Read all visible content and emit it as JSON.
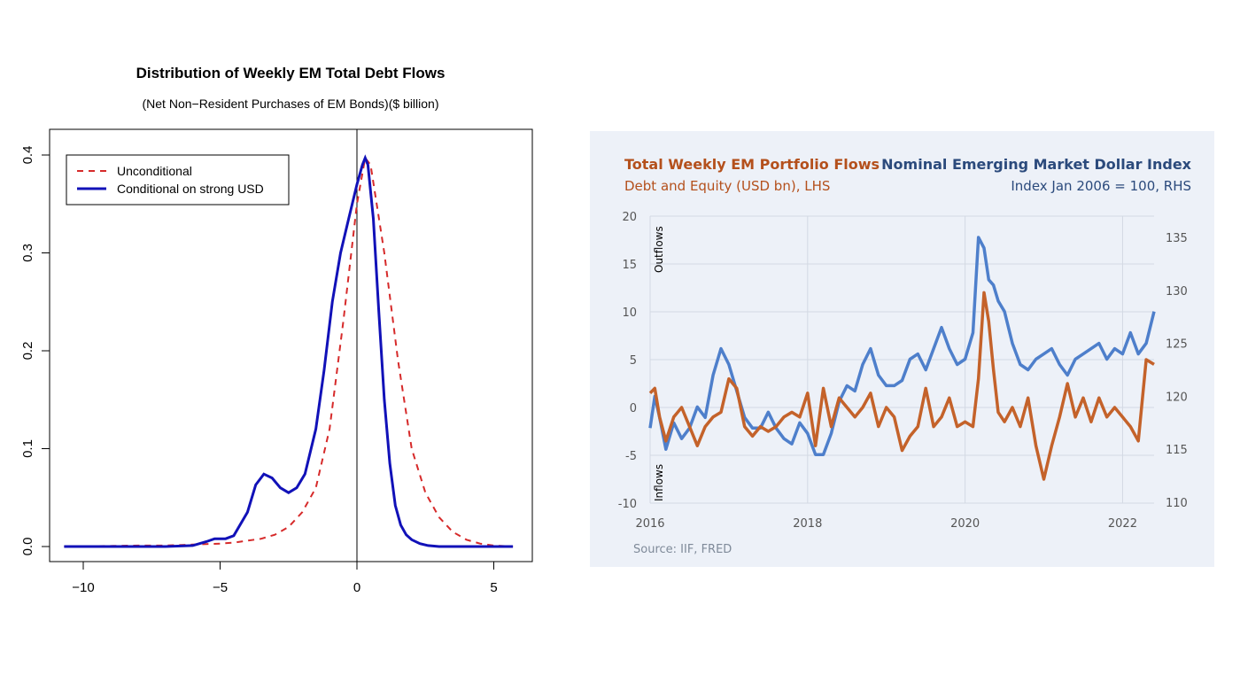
{
  "colors": {
    "unconditional": "#d62a2a",
    "conditional": "#1111b8",
    "debt_equity": "#c4622a",
    "dollar_index": "#4e7fcb",
    "panel_bg": "#edf1f8",
    "right_title_blue": "#2b4a7c",
    "right_title_orange": "#b4501c"
  },
  "chart_data": [
    {
      "type": "line",
      "title": "Distribution of Weekly EM Total Debt Flows",
      "subtitle": "(Net Non−Resident Purchases of EM Bonds)($ billion)",
      "xlabel": "",
      "ylabel": "",
      "xlim": [
        -10.7,
        5.8
      ],
      "ylim": [
        0,
        0.4
      ],
      "xticks": [
        "−10",
        "−5",
        "0",
        "5"
      ],
      "xtick_values": [
        -10,
        -5,
        0,
        5
      ],
      "yticks": [
        "0.0",
        "0.1",
        "0.2",
        "0.3",
        "0.4"
      ],
      "ytick_values": [
        0,
        0.1,
        0.2,
        0.3,
        0.4
      ],
      "vline": 0,
      "grid": false,
      "legend_position": "top-left",
      "series": [
        {
          "name": "Unconditional",
          "style": "dashed",
          "x": [
            -10.7,
            -8,
            -7,
            -6,
            -5,
            -4.5,
            -4,
            -3.5,
            -3,
            -2.5,
            -2,
            -1.5,
            -1,
            -0.5,
            0,
            0.3,
            0.5,
            1,
            1.5,
            2,
            2.5,
            3,
            3.5,
            4,
            4.5,
            5,
            5.7
          ],
          "y": [
            0,
            0.001,
            0.001,
            0.002,
            0.003,
            0.004,
            0.006,
            0.008,
            0.012,
            0.02,
            0.035,
            0.06,
            0.12,
            0.23,
            0.35,
            0.397,
            0.39,
            0.3,
            0.19,
            0.1,
            0.055,
            0.03,
            0.015,
            0.007,
            0.003,
            0.001,
            0
          ]
        },
        {
          "name": "Conditional on strong USD",
          "style": "solid",
          "x": [
            -10.7,
            -7,
            -6,
            -5.5,
            -5.2,
            -4.8,
            -4.5,
            -4,
            -3.7,
            -3.4,
            -3.1,
            -2.8,
            -2.5,
            -2.2,
            -1.9,
            -1.5,
            -1.2,
            -0.9,
            -0.6,
            -0.3,
            0,
            0.2,
            0.3,
            0.4,
            0.6,
            0.8,
            1,
            1.2,
            1.4,
            1.6,
            1.8,
            2,
            2.3,
            2.6,
            3,
            3.5,
            5.7
          ],
          "y": [
            0,
            0,
            0.001,
            0.005,
            0.008,
            0.008,
            0.011,
            0.035,
            0.063,
            0.074,
            0.07,
            0.06,
            0.055,
            0.06,
            0.074,
            0.12,
            0.18,
            0.25,
            0.3,
            0.335,
            0.37,
            0.39,
            0.397,
            0.39,
            0.335,
            0.24,
            0.15,
            0.085,
            0.042,
            0.022,
            0.012,
            0.007,
            0.003,
            0.001,
            0,
            0,
            0
          ]
        }
      ]
    },
    {
      "type": "line",
      "title": "Total Weekly EM Portfolio Flows",
      "subtitle": "Debt and Equity (USD bn), LHS",
      "title_right": "Nominal Emerging Market Dollar Index",
      "subtitle_right": "Index Jan 2006 = 100, RHS",
      "source": "Source: IIF, FRED",
      "annotations": [
        "Outflows",
        "Inflows"
      ],
      "xlim": [
        2016,
        2022.4
      ],
      "ylim": [
        -10,
        20
      ],
      "y2lim": [
        110,
        136
      ],
      "xticks": [
        "2016",
        "2018",
        "2020",
        "2022"
      ],
      "xtick_values": [
        2016,
        2018,
        2020,
        2022
      ],
      "yticks": [
        "20",
        "15",
        "10",
        "5",
        "0",
        "-5",
        "-10"
      ],
      "ytick_values": [
        20,
        15,
        10,
        5,
        0,
        -5,
        -10
      ],
      "y2ticks": [
        "135",
        "130",
        "125",
        "120",
        "115",
        "110"
      ],
      "y2tick_values": [
        135,
        130,
        125,
        120,
        115,
        110
      ],
      "grid": true,
      "series": [
        {
          "name": "Total Weekly EM Portfolio Flows",
          "axis": "left",
          "x": [
            2016.0,
            2016.06,
            2016.12,
            2016.2,
            2016.3,
            2016.4,
            2016.5,
            2016.6,
            2016.7,
            2016.8,
            2016.9,
            2017.0,
            2017.1,
            2017.2,
            2017.3,
            2017.4,
            2017.5,
            2017.6,
            2017.7,
            2017.8,
            2017.9,
            2018.0,
            2018.1,
            2018.2,
            2018.3,
            2018.4,
            2018.5,
            2018.6,
            2018.7,
            2018.8,
            2018.9,
            2019.0,
            2019.1,
            2019.2,
            2019.3,
            2019.4,
            2019.5,
            2019.6,
            2019.7,
            2019.8,
            2019.9,
            2020.0,
            2020.1,
            2020.17,
            2020.24,
            2020.3,
            2020.36,
            2020.42,
            2020.5,
            2020.6,
            2020.7,
            2020.8,
            2020.9,
            2021.0,
            2021.1,
            2021.2,
            2021.3,
            2021.4,
            2021.5,
            2021.6,
            2021.7,
            2021.8,
            2021.9,
            2022.0,
            2022.1,
            2022.2,
            2022.3,
            2022.4
          ],
          "y": [
            1.5,
            2,
            -1,
            -3.5,
            -1,
            0,
            -2,
            -4,
            -2,
            -1,
            -0.5,
            3,
            2,
            -2,
            -3,
            -2,
            -2.5,
            -2,
            -1,
            -0.5,
            -1,
            1.5,
            -4,
            2,
            -2,
            1,
            0,
            -1,
            0,
            1.5,
            -2,
            0,
            -1,
            -4.5,
            -3,
            -2,
            2,
            -2,
            -1,
            1,
            -2,
            -1.5,
            -2,
            3,
            12,
            9,
            4,
            -0.5,
            -1.5,
            0,
            -2,
            1,
            -4,
            -7.5,
            -4,
            -1,
            2.5,
            -1,
            1,
            -1.5,
            1,
            -1,
            0,
            -1,
            -2,
            -3.5,
            5,
            4.5
          ]
        },
        {
          "name": "Nominal Emerging Market Dollar Index",
          "axis": "right",
          "x": [
            2016.0,
            2016.06,
            2016.12,
            2016.2,
            2016.3,
            2016.4,
            2016.5,
            2016.6,
            2016.7,
            2016.8,
            2016.9,
            2017.0,
            2017.1,
            2017.2,
            2017.3,
            2017.4,
            2017.5,
            2017.6,
            2017.7,
            2017.8,
            2017.9,
            2018.0,
            2018.1,
            2018.2,
            2018.3,
            2018.4,
            2018.5,
            2018.6,
            2018.7,
            2018.8,
            2018.9,
            2019.0,
            2019.1,
            2019.2,
            2019.3,
            2019.4,
            2019.5,
            2019.6,
            2019.7,
            2019.8,
            2019.9,
            2020.0,
            2020.1,
            2020.17,
            2020.24,
            2020.3,
            2020.36,
            2020.42,
            2020.5,
            2020.6,
            2020.7,
            2020.8,
            2020.9,
            2021.0,
            2021.1,
            2021.2,
            2021.3,
            2021.4,
            2021.5,
            2021.6,
            2021.7,
            2021.8,
            2021.9,
            2022.0,
            2022.1,
            2022.2,
            2022.3,
            2022.4
          ],
          "y": [
            117,
            120,
            118,
            115,
            117.5,
            116,
            117,
            119,
            118,
            122,
            124.5,
            123,
            120.5,
            118,
            117,
            117,
            118.5,
            117,
            116,
            115.5,
            117.5,
            116.5,
            114.5,
            114.5,
            116.5,
            119.5,
            121,
            120.5,
            123,
            124.5,
            122,
            121,
            121,
            121.5,
            123.5,
            124,
            122.5,
            124.5,
            126.5,
            124.5,
            123,
            123.5,
            126,
            135,
            134,
            131,
            130.5,
            129,
            128,
            125,
            123,
            122.5,
            123.5,
            124,
            124.5,
            123,
            122,
            123.5,
            124,
            124.5,
            125,
            123.5,
            124.5,
            124,
            126,
            124,
            125,
            128
          ]
        }
      ]
    }
  ]
}
